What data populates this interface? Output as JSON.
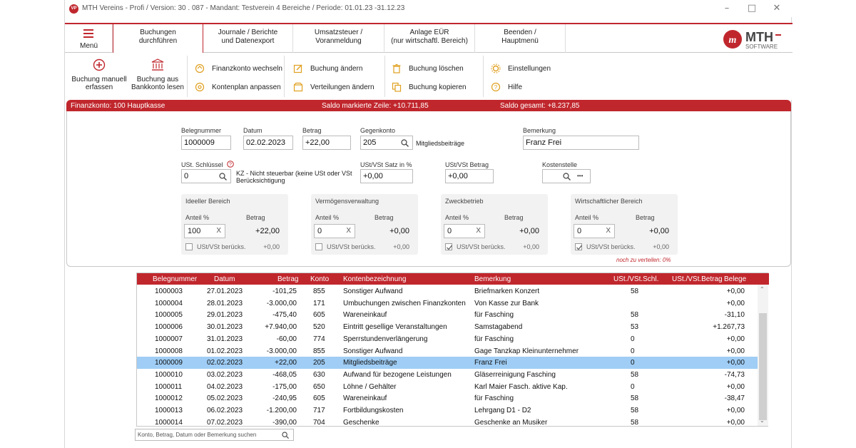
{
  "window": {
    "title": "MTH Vereins - Profi  /  Version: 30 . 087     -   Mandant: Testverein 4 Bereiche  /  Periode: 01.01.23 -31.12.23",
    "logo_text": "VP"
  },
  "menu": {
    "label": "Menü"
  },
  "tabs": [
    {
      "line1": "Buchungen",
      "line2": "durchführen"
    },
    {
      "line1": "Journale / Berichte",
      "line2": "und Datenexport"
    },
    {
      "line1": "Umsatzsteuer /",
      "line2": "Voranmeldung"
    },
    {
      "line1": "Anlage EÜR",
      "line2": "(nur wirtschaftl. Bereich)"
    },
    {
      "line1": "Beenden /",
      "line2": "Hauptmenü"
    }
  ],
  "brand": {
    "name": "MTH",
    "sub": "SOFTWARE"
  },
  "ribbon": {
    "big": [
      {
        "line1": "Buchung manuell",
        "line2": "erfassen"
      },
      {
        "line1": "Buchung aus",
        "line2": "Bankkonto lesen"
      }
    ],
    "items": [
      "Finanzkonto wechseln",
      "Kontenplan anpassen",
      "Buchung ändern",
      "Verteilungen ändern",
      "Buchung löschen",
      "Buchung kopieren",
      "Einstellungen",
      "Hilfe"
    ]
  },
  "panel": {
    "konto": "Finanzkonto: 100 Hauptkasse",
    "saldo_markiert": "Saldo markierte Zeile: +10.711,85",
    "saldo_gesamt": "Saldo gesamt: +8.237,85"
  },
  "form": {
    "belegnummer_label": "Belegnummer",
    "belegnummer": "1000009",
    "datum_label": "Datum",
    "datum": "02.02.2023",
    "betrag_label": "Betrag",
    "betrag": "+22,00",
    "gegenkonto_label": "Gegenkonto",
    "gegenkonto": "205",
    "gegenkonto_name": "Mitgliedsbeiträge",
    "bemerkung_label": "Bemerkung",
    "bemerkung": "Franz Frei",
    "ust_schluessel_label": "USt. Schlüssel",
    "ust_schluessel": "0",
    "ust_text_line1": "KZ - Nicht steuerbar (keine USt oder VSt",
    "ust_text_line2": "Berücksichtigung",
    "ust_satz_label": "USt/VSt Satz in %",
    "ust_satz": "+0,00",
    "ust_betrag_label": "USt/VSt Betrag",
    "ust_betrag": "+0,00",
    "kostenstelle_label": "Kostenstelle",
    "more": "•••"
  },
  "areas": [
    {
      "title": "Ideeller Bereich",
      "anteil_label": "Anteil %",
      "betrag_label": "Betrag",
      "anteil": "100",
      "betrag": "+22,00",
      "cb_label": "USt/VSt berücks.",
      "ust": "+0,00",
      "checked": false
    },
    {
      "title": "Vermögensverwaltung",
      "anteil_label": "Anteil %",
      "betrag_label": "Betrag",
      "anteil": "0",
      "betrag": "+0,00",
      "cb_label": "USt/VSt berücks.",
      "ust": "+0,00",
      "checked": false
    },
    {
      "title": "Zweckbetrieb",
      "anteil_label": "Anteil %",
      "betrag_label": "Betrag",
      "anteil": "0",
      "betrag": "+0,00",
      "cb_label": "USt/VSt berücks.",
      "ust": "+0,00",
      "checked": true
    },
    {
      "title": "Wirtschaftlicher Bereich",
      "anteil_label": "Anteil %",
      "betrag_label": "Betrag",
      "anteil": "0",
      "betrag": "+0,00",
      "cb_label": "USt/VSt berücks.",
      "ust": "+0,00",
      "checked": true
    }
  ],
  "clear_x": "X",
  "notice": "noch zu verteilen: 0%",
  "table": {
    "headers": [
      "Belegnummer",
      "Datum",
      "Betrag",
      "Konto",
      "Kontenbezeichnung",
      "Bemerkung",
      "USt./VSt.Schl.",
      "USt./VSt.Betrag",
      "Belege"
    ],
    "selected_index": 6,
    "rows": [
      [
        "1000003",
        "27.01.2023",
        "-101,25",
        "855",
        "Sonstiger Aufwand",
        "Briefmarken Konzert",
        "58",
        "+0,00"
      ],
      [
        "1000004",
        "28.01.2023",
        "-3.000,00",
        "171",
        "Umbuchungen zwischen Finanzkonten",
        "Von Kasse zur Bank",
        "",
        "+0,00"
      ],
      [
        "1000005",
        "29.01.2023",
        "-475,40",
        "605",
        "Wareneinkauf",
        "für Fasching",
        "58",
        "-31,10"
      ],
      [
        "1000006",
        "30.01.2023",
        "+7.940,00",
        "520",
        "Eintritt gesellige Veranstaltungen",
        "Samstagabend",
        "53",
        "+1.267,73"
      ],
      [
        "1000007",
        "31.01.2023",
        "-60,00",
        "774",
        "Sperrstundenverlängerung",
        "für Fasching",
        "0",
        "+0,00"
      ],
      [
        "1000008",
        "01.02.2023",
        "-3.000,00",
        "855",
        "Sonstiger Aufwand",
        "Gage Tanzkap Kleinunternehmer",
        "0",
        "+0,00"
      ],
      [
        "1000009",
        "02.02.2023",
        "+22,00",
        "205",
        "Mitgliedsbeiträge",
        "Franz Frei",
        "0",
        "+0,00"
      ],
      [
        "1000010",
        "03.02.2023",
        "-468,05",
        "630",
        "Aufwand für bezogene Leistungen",
        "Gläserreinigung Fasching",
        "58",
        "-74,73"
      ],
      [
        "1000011",
        "04.02.2023",
        "-175,00",
        "650",
        "Löhne / Gehälter",
        "Karl Maier Fasch. aktive Kap.",
        "0",
        "+0,00"
      ],
      [
        "1000012",
        "05.02.2023",
        "-240,95",
        "605",
        "Wareneinkauf",
        "für Fasching",
        "58",
        "-38,47"
      ],
      [
        "1000013",
        "06.02.2023",
        "-1.200,00",
        "717",
        "Fortbildungskosten",
        "Lehrgang D1 - D2",
        "58",
        "+0,00"
      ],
      [
        "1000014",
        "07.02.2023",
        "-390,00",
        "704",
        "Geschenke",
        "Geschenke an Musiker",
        "58",
        "+0,00"
      ]
    ]
  },
  "search": {
    "placeholder": "Konto, Betrag, Datum oder Bemerkung suchen"
  }
}
